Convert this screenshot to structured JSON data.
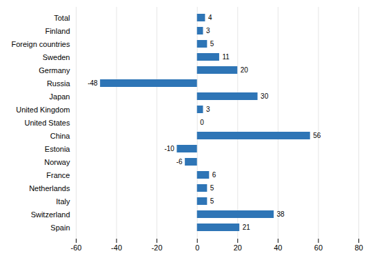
{
  "chart_data": {
    "type": "bar",
    "orientation": "horizontal",
    "categories": [
      "Spain",
      "Switzerland",
      "Italy",
      "Netherlands",
      "France",
      "Norway",
      "Estonia",
      "China",
      "United States",
      "United Kingdom",
      "Japan",
      "Russia",
      "Germany",
      "Sweden",
      "Foreign countries",
      "Finland",
      "Total"
    ],
    "values": [
      21,
      38,
      5,
      5,
      6,
      -6,
      -10,
      56,
      0,
      3,
      30,
      -48,
      20,
      11,
      5,
      3,
      4
    ],
    "color": "#2E75B6",
    "xlim": [
      -60,
      80
    ],
    "xticks": [
      -60,
      -40,
      -20,
      0,
      20,
      40,
      60,
      80
    ],
    "grid": true,
    "data_labels": true
  }
}
